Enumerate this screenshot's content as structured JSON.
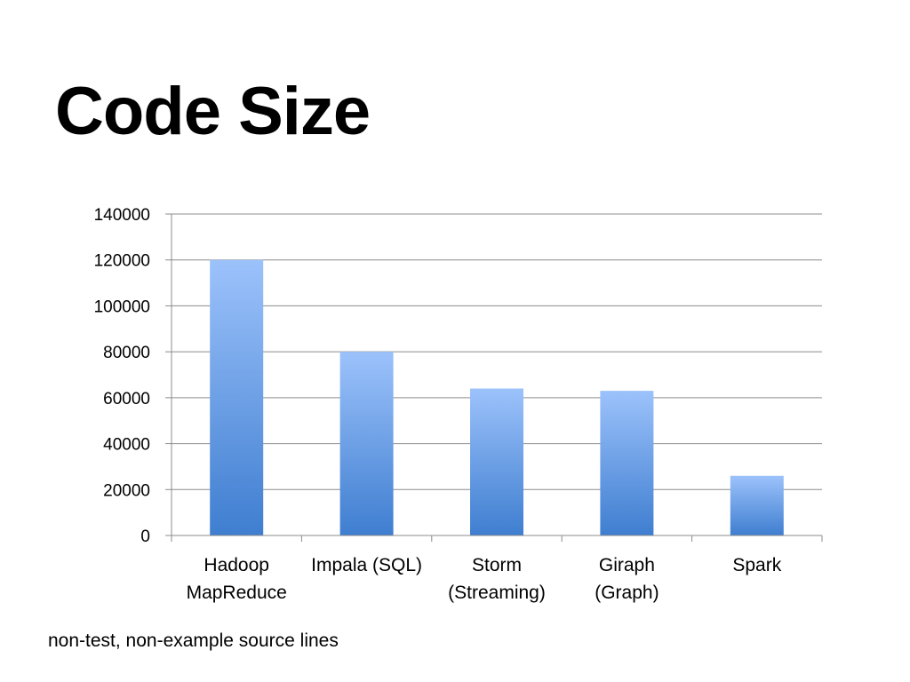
{
  "slide": {
    "title": "Code Size",
    "footnote": "non-test, non-example source lines"
  },
  "colors": {
    "bar_top": "#9cc2fb",
    "bar_bottom": "#3f7ed0",
    "gridline": "#8c8c8c"
  },
  "chart_data": {
    "type": "bar",
    "title": "",
    "xlabel": "",
    "ylabel": "",
    "ylim": [
      0,
      140000
    ],
    "yticks": [
      0,
      20000,
      40000,
      60000,
      80000,
      100000,
      120000,
      140000
    ],
    "grid": true,
    "categories": [
      [
        "Hadoop",
        "MapReduce"
      ],
      [
        "Impala (SQL)"
      ],
      [
        "Storm",
        "(Streaming)"
      ],
      [
        "Giraph",
        "(Graph)"
      ],
      [
        "Spark"
      ]
    ],
    "values": [
      120000,
      80000,
      64000,
      63000,
      26000
    ]
  }
}
